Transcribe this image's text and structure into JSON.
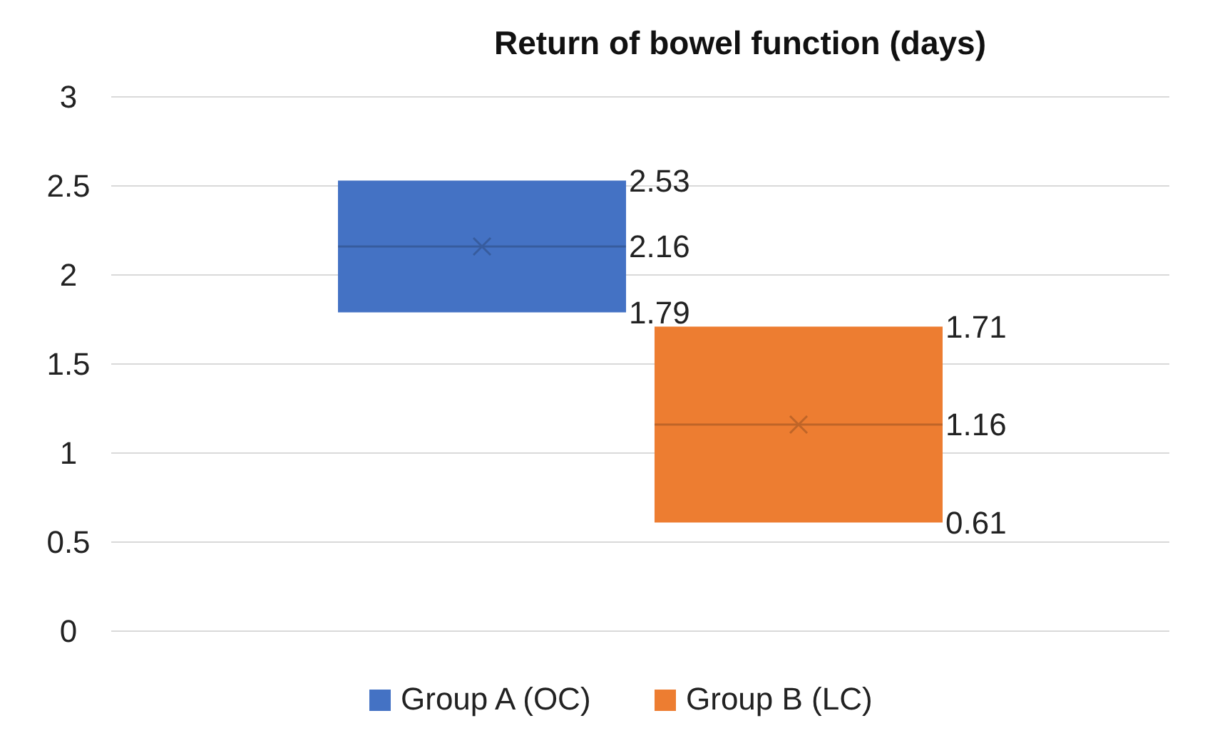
{
  "chart_data": {
    "type": "box",
    "title": "Return of bowel function (days)",
    "categories": [
      null
    ],
    "series": [
      {
        "name": "Group A (OC)",
        "color": "#4472c4",
        "boxes": [
          {
            "low": 1.79,
            "q1": 1.79,
            "median": 2.16,
            "q3": 2.53,
            "high": 2.53,
            "mean": 2.16
          }
        ]
      },
      {
        "name": "Group B (LC)",
        "color": "#ed7d31",
        "boxes": [
          {
            "low": 0.61,
            "q1": 0.61,
            "median": 1.16,
            "q3": 1.71,
            "high": 1.71,
            "mean": 1.16
          }
        ]
      }
    ],
    "annotations": [
      "2.53",
      "2.16",
      "1.79",
      "1.71",
      "1.16",
      "0.61"
    ],
    "ylim": [
      0,
      3
    ],
    "yticks": [
      0,
      0.5,
      1,
      1.5,
      2,
      2.5,
      3
    ],
    "grid": "y",
    "legend": "bottom",
    "marker": "cross",
    "tick_labels": "y"
  }
}
